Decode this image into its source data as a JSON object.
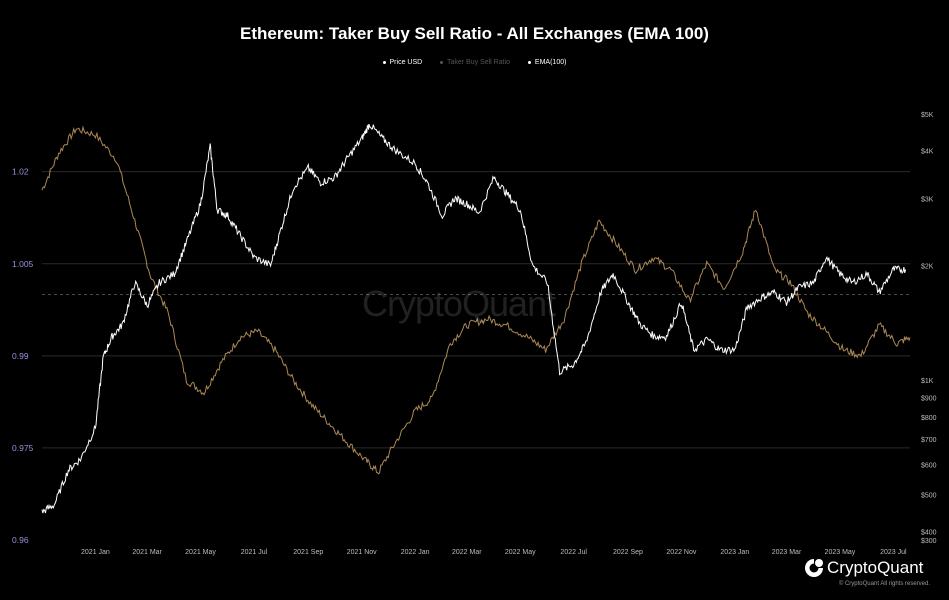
{
  "chart_data": {
    "type": "line",
    "title": "Ethereum: Taker Buy Sell Ratio - All Exchanges (EMA 100)",
    "legend": [
      {
        "label": "Price USD",
        "color": "#ffffff",
        "dim": false
      },
      {
        "label": "Taker Buy Sell Ratio",
        "color": "#777777",
        "dim": true
      },
      {
        "label": "EMA(100)",
        "color": "#c9a064",
        "dim": false
      }
    ],
    "y_left": {
      "min": 0.96,
      "max": 1.032,
      "ticks": [
        1.02,
        1.005,
        0.99,
        0.975,
        0.96
      ],
      "tick_labels": [
        "1.02",
        "1.005",
        "0.99",
        "0.975",
        "0.96"
      ],
      "color": "#9a8fe0"
    },
    "y_right": {
      "scale": "log",
      "min": 380,
      "max": 5500,
      "ticks": [
        5000,
        4000,
        3000,
        2000,
        1000,
        900,
        800,
        700,
        600,
        500,
        400
      ],
      "tick_labels": [
        "$5K",
        "$4K",
        "$3K",
        "$2K",
        "$1K",
        "$900",
        "$800",
        "$700",
        "$600",
        "$500",
        "$400"
      ],
      "minor_ticks": [
        300
      ],
      "minor_tick_labels": [
        "$300"
      ]
    },
    "x_ticks": [
      "2021 Jan",
      "2021 Mar",
      "2021 May",
      "2021 Jul",
      "2021 Sep",
      "2021 Nov",
      "2022 Jan",
      "2022 Mar",
      "2022 May",
      "2022 Jul",
      "2022 Sep",
      "2022 Nov",
      "2023 Jan",
      "2023 Mar",
      "2023 May",
      "2023 Jul"
    ],
    "x_range": [
      "2020-11-01",
      "2023-07-20"
    ],
    "reference_line": {
      "value": 1.0,
      "style": "dashed"
    },
    "series": [
      {
        "name": "Price USD",
        "color": "#ffffff",
        "axis": "right",
        "x": [
          "2020-11-01",
          "2020-11-15",
          "2020-12-01",
          "2020-12-15",
          "2021-01-01",
          "2021-01-10",
          "2021-01-20",
          "2021-02-01",
          "2021-02-15",
          "2021-03-01",
          "2021-03-15",
          "2021-04-01",
          "2021-04-15",
          "2021-05-01",
          "2021-05-12",
          "2021-05-20",
          "2021-06-01",
          "2021-06-15",
          "2021-07-01",
          "2021-07-20",
          "2021-08-01",
          "2021-08-15",
          "2021-09-01",
          "2021-09-15",
          "2021-10-01",
          "2021-10-15",
          "2021-11-01",
          "2021-11-10",
          "2021-11-25",
          "2021-12-10",
          "2022-01-01",
          "2022-01-15",
          "2022-02-01",
          "2022-02-15",
          "2022-03-01",
          "2022-03-15",
          "2022-04-01",
          "2022-04-15",
          "2022-05-01",
          "2022-05-15",
          "2022-06-01",
          "2022-06-15",
          "2022-07-01",
          "2022-07-15",
          "2022-08-01",
          "2022-08-15",
          "2022-09-01",
          "2022-09-15",
          "2022-10-01",
          "2022-10-15",
          "2022-11-01",
          "2022-11-15",
          "2022-12-01",
          "2022-12-15",
          "2023-01-01",
          "2023-01-15",
          "2023-02-01",
          "2023-02-15",
          "2023-03-01",
          "2023-03-15",
          "2023-04-01",
          "2023-04-15",
          "2023-05-01",
          "2023-05-15",
          "2023-06-01",
          "2023-06-15",
          "2023-07-01",
          "2023-07-15"
        ],
        "values": [
          450,
          470,
          580,
          620,
          750,
          1150,
          1300,
          1400,
          1800,
          1570,
          1800,
          1900,
          2300,
          2900,
          4100,
          2800,
          2700,
          2400,
          2100,
          2000,
          2500,
          3200,
          3600,
          3300,
          3400,
          3800,
          4300,
          4700,
          4300,
          4000,
          3700,
          3300,
          2700,
          3000,
          2900,
          2750,
          3400,
          3100,
          2800,
          2000,
          1800,
          1050,
          1100,
          1250,
          1700,
          1900,
          1600,
          1400,
          1300,
          1300,
          1600,
          1200,
          1280,
          1200,
          1200,
          1550,
          1650,
          1700,
          1600,
          1750,
          1800,
          2100,
          1900,
          1800,
          1900,
          1700,
          1950,
          1950
        ]
      },
      {
        "name": "EMA(100)",
        "color": "#c9a064",
        "axis": "left",
        "x": [
          "2020-11-01",
          "2020-11-20",
          "2020-12-10",
          "2021-01-01",
          "2021-01-25",
          "2021-02-15",
          "2021-03-05",
          "2021-03-25",
          "2021-04-15",
          "2021-05-05",
          "2021-05-25",
          "2021-06-15",
          "2021-07-05",
          "2021-07-25",
          "2021-08-15",
          "2021-09-05",
          "2021-09-25",
          "2021-10-15",
          "2021-11-05",
          "2021-11-20",
          "2021-12-10",
          "2022-01-01",
          "2022-01-20",
          "2022-02-10",
          "2022-03-01",
          "2022-03-25",
          "2022-04-15",
          "2022-05-10",
          "2022-05-30",
          "2022-06-20",
          "2022-07-10",
          "2022-07-30",
          "2022-08-20",
          "2022-09-10",
          "2022-09-30",
          "2022-10-20",
          "2022-11-10",
          "2022-11-30",
          "2022-12-20",
          "2023-01-10",
          "2023-01-25",
          "2023-02-15",
          "2023-03-05",
          "2023-03-25",
          "2023-04-15",
          "2023-05-05",
          "2023-05-25",
          "2023-06-15",
          "2023-07-05",
          "2023-07-20"
        ],
        "values": [
          1.017,
          1.023,
          1.027,
          1.026,
          1.022,
          1.012,
          1.003,
          0.997,
          0.986,
          0.984,
          0.989,
          0.993,
          0.994,
          0.991,
          0.986,
          0.982,
          0.979,
          0.976,
          0.973,
          0.971,
          0.976,
          0.981,
          0.983,
          0.992,
          0.995,
          0.996,
          0.995,
          0.993,
          0.991,
          0.996,
          1.005,
          1.012,
          1.008,
          1.004,
          1.006,
          1.004,
          0.999,
          1.005,
          1.001,
          1.007,
          1.014,
          1.004,
          1.002,
          0.997,
          0.994,
          0.991,
          0.99,
          0.995,
          0.992,
          0.993
        ]
      }
    ]
  },
  "watermark": "CryptoQuant",
  "brand": {
    "name": "CryptoQuant",
    "copyright": "© CryptoQuant All rights reserved."
  }
}
